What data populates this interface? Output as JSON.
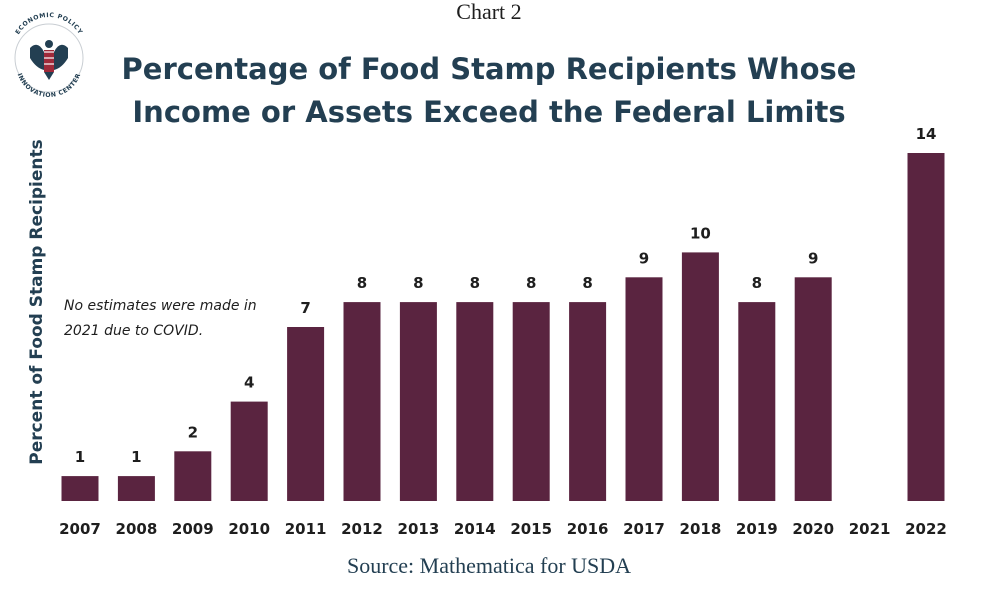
{
  "chart_label": "Chart 2",
  "logo": {
    "top_text": "ECONOMIC POLICY",
    "bottom_text": "INNOVATION CENTER",
    "emblem": "eagle-icon"
  },
  "note": [
    "No estimates were made in",
    "2021 due to COVID."
  ],
  "source": "Source: Mathematica for USDA",
  "colors": {
    "bar": "#5a2440",
    "title": "#233f52",
    "text": "#1e1e1e"
  },
  "chart_data": {
    "type": "bar",
    "title": [
      "Percentage of  Food Stamp Recipients Whose",
      "Income or Assets Exceed the Federal Limits"
    ],
    "xlabel": "",
    "ylabel": "Percent of Food Stamp Recipients",
    "categories": [
      "2007",
      "2008",
      "2009",
      "2010",
      "2011",
      "2012",
      "2013",
      "2014",
      "2015",
      "2016",
      "2017",
      "2018",
      "2019",
      "2020",
      "2021",
      "2022"
    ],
    "values": [
      1,
      1,
      2,
      4,
      7,
      8,
      8,
      8,
      8,
      8,
      9,
      10,
      8,
      9,
      null,
      14
    ],
    "data_labels": [
      "1",
      "1",
      "2",
      "4",
      "7",
      "8",
      "8",
      "8",
      "8",
      "8",
      "9",
      "10",
      "8",
      "9",
      "",
      "14"
    ],
    "ylim": [
      0,
      14
    ],
    "grid": false,
    "legend": "none"
  }
}
